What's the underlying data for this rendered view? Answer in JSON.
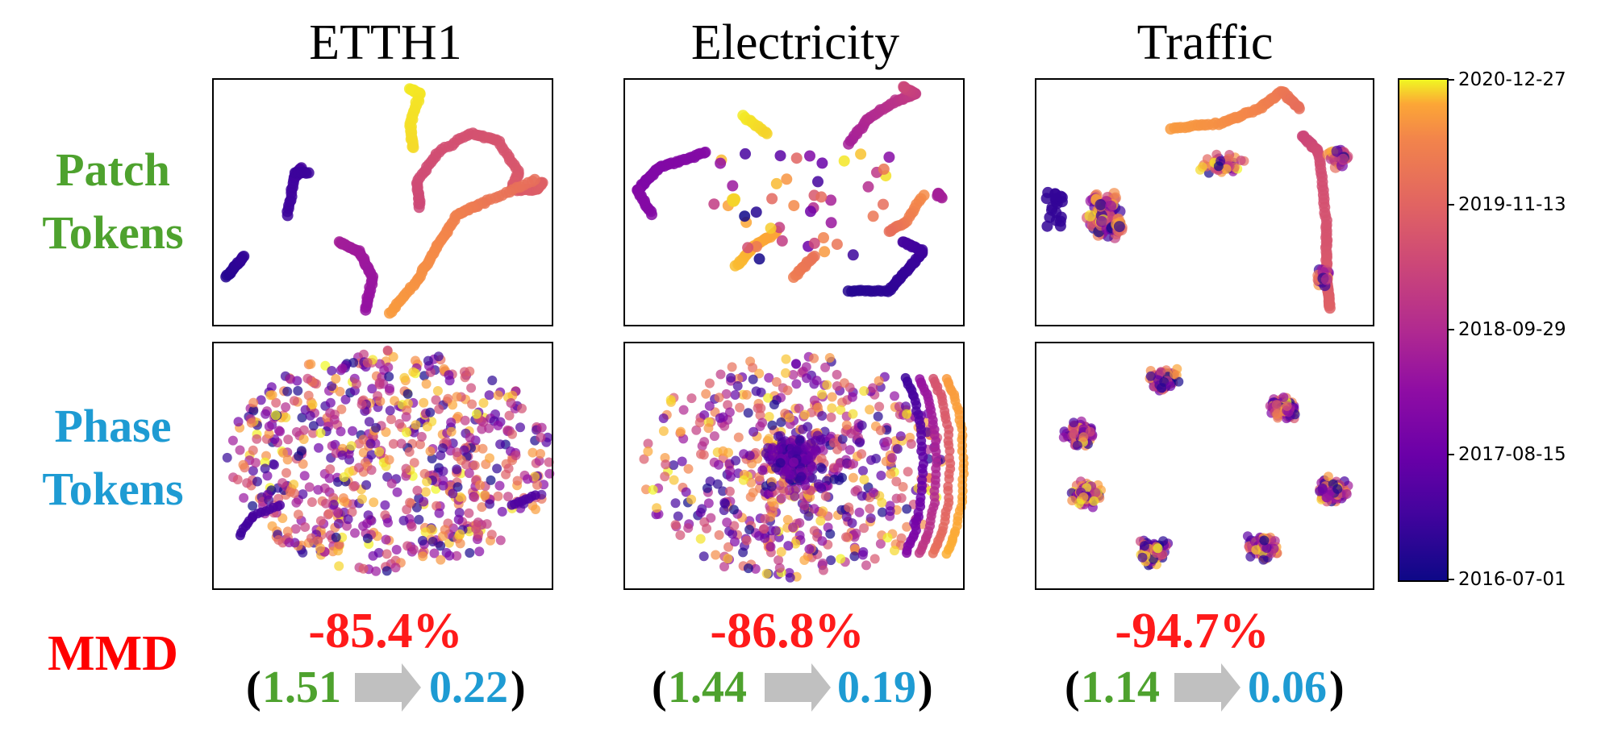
{
  "panels": [
    {
      "title": "ETTH1",
      "mmd": {
        "change": "-85.4%",
        "before": "1.51",
        "after": "0.22"
      }
    },
    {
      "title": "Electricity",
      "mmd": {
        "change": "-86.8%",
        "before": "1.44",
        "after": "0.19"
      }
    },
    {
      "title": "Traffic",
      "mmd": {
        "change": "-94.7%",
        "before": "1.14",
        "after": "0.06"
      }
    }
  ],
  "row_labels": {
    "patch": [
      "Patch",
      "Tokens"
    ],
    "phase": [
      "Phase",
      "Tokens"
    ],
    "mmd": "MMD"
  },
  "colors": {
    "patch": "#4ea22e",
    "phase": "#1e9bd3",
    "mmd": "#ff0000",
    "arrow": "#c0c0c0"
  },
  "colorbar": {
    "colormap": "plasma",
    "ticks": [
      "2020-12-27",
      "2019-11-13",
      "2018-09-29",
      "2017-08-15",
      "2016-07-01"
    ]
  },
  "chart_data": {
    "type": "scatter",
    "description_source": "t-SNE embeddings colored by date",
    "color_range": [
      "2016-07-01",
      "2020-12-27"
    ],
    "panels": [
      {
        "dataset": "ETTH1",
        "row": "Patch Tokens",
        "pattern": "continuous curves"
      },
      {
        "dataset": "Electricity",
        "row": "Patch Tokens",
        "pattern": "continuous curves"
      },
      {
        "dataset": "Traffic",
        "row": "Patch Tokens",
        "pattern": "continuous curves"
      },
      {
        "dataset": "ETTH1",
        "row": "Phase Tokens",
        "pattern": "mixed cloud"
      },
      {
        "dataset": "Electricity",
        "row": "Phase Tokens",
        "pattern": "mixed cloud"
      },
      {
        "dataset": "Traffic",
        "row": "Phase Tokens",
        "pattern": "clusters"
      }
    ],
    "mmd": [
      {
        "dataset": "ETTH1",
        "patch": 1.51,
        "phase": 0.22,
        "change_pct": -85.4
      },
      {
        "dataset": "Electricity",
        "patch": 1.44,
        "phase": 0.19,
        "change_pct": -86.8
      },
      {
        "dataset": "Traffic",
        "patch": 1.14,
        "phase": 0.06,
        "change_pct": -94.7
      }
    ]
  }
}
